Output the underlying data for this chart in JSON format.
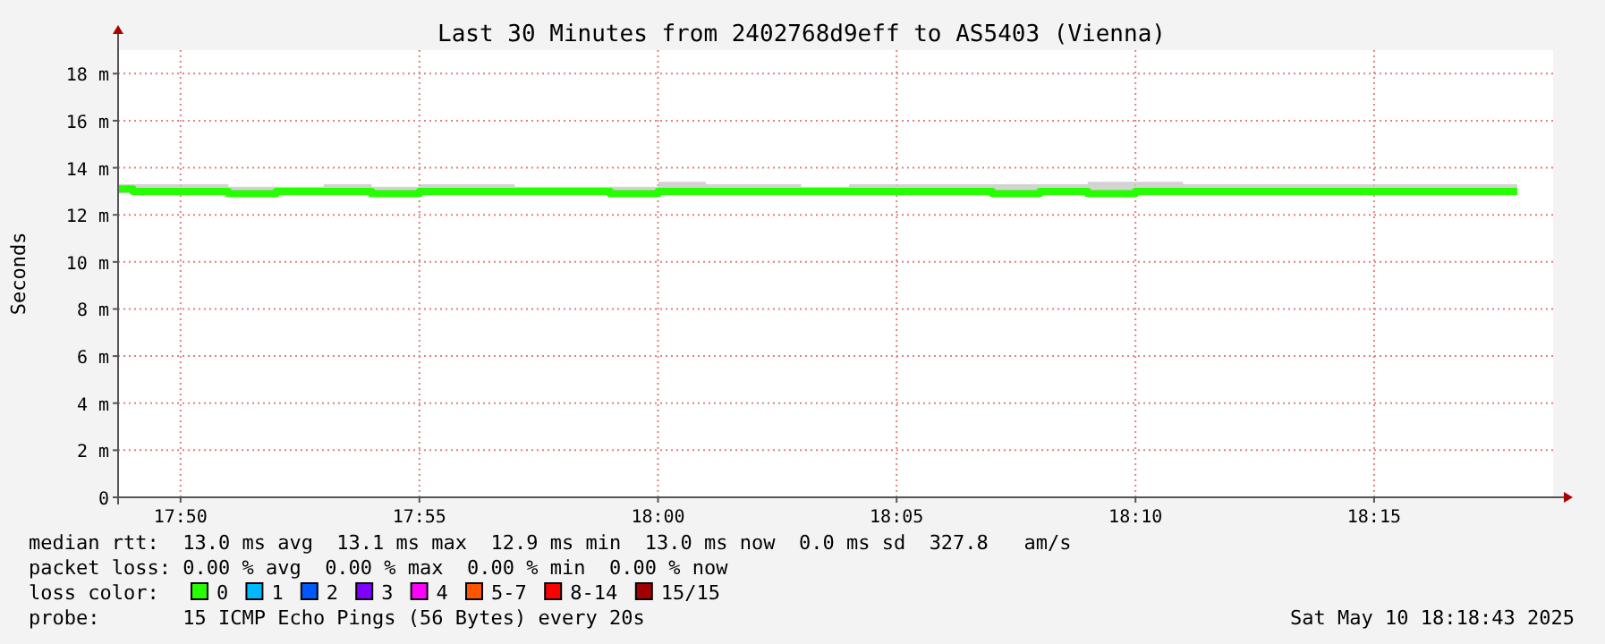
{
  "chart_data": {
    "type": "step",
    "title": "Last 30 Minutes from 2402768d9eff to AS5403 (Vienna)",
    "ylabel": "Seconds",
    "xlim": [
      17.8115,
      18.3125
    ],
    "xticks": [
      {
        "value": 17.8333,
        "label": "17:50"
      },
      {
        "value": 17.9167,
        "label": "17:55"
      },
      {
        "value": 18.0,
        "label": "18:00"
      },
      {
        "value": 18.0833,
        "label": "18:05"
      },
      {
        "value": 18.1667,
        "label": "18:10"
      },
      {
        "value": 18.25,
        "label": "18:15"
      }
    ],
    "ylim": [
      0,
      19
    ],
    "yticks": [
      0,
      {
        "value": 2,
        "label": "2 m"
      },
      {
        "value": 4,
        "label": "4 m"
      },
      {
        "value": 6,
        "label": "6 m"
      },
      {
        "value": 8,
        "label": "8 m"
      },
      {
        "value": 10,
        "label": "10 m"
      },
      {
        "value": 12,
        "label": "12 m"
      },
      {
        "value": 14,
        "label": "14 m"
      },
      {
        "value": 16,
        "label": "16 m"
      },
      {
        "value": 18,
        "label": "18 m"
      }
    ],
    "grid": true,
    "legend": "bottom",
    "legend_title": "loss color:",
    "x": [
      17.8115,
      17.8167,
      17.8333,
      17.85,
      17.8667,
      17.8833,
      17.9,
      17.9167,
      17.9333,
      17.95,
      17.9667,
      17.9833,
      18.0,
      18.0167,
      18.0333,
      18.05,
      18.0667,
      18.0833,
      18.1,
      18.1167,
      18.1333,
      18.15,
      18.1667,
      18.1833,
      18.2,
      18.2167,
      18.2333,
      18.25,
      18.2667,
      18.2833,
      18.3
    ],
    "series": [
      {
        "name": "0",
        "color": "#26ff00",
        "values": [
          13.1,
          13.0,
          13.0,
          12.9,
          13.0,
          13.0,
          12.9,
          13.0,
          13.0,
          13.0,
          13.0,
          12.9,
          13.0,
          13.0,
          13.0,
          13.0,
          13.0,
          13.0,
          13.0,
          12.9,
          13.0,
          12.9,
          13.0,
          13.0,
          13.0,
          13.0,
          13.0,
          13.0,
          13.0,
          13.0,
          13.0
        ],
        "lower": [
          12.9,
          12.9,
          12.9,
          12.8,
          12.9,
          12.9,
          12.9,
          12.9,
          12.9,
          12.9,
          12.9,
          12.9,
          12.9,
          12.9,
          12.9,
          12.9,
          12.9,
          12.9,
          12.9,
          12.8,
          12.9,
          12.8,
          12.9,
          12.9,
          12.9,
          12.9,
          12.9,
          12.9,
          12.9,
          12.9,
          12.9
        ],
        "upper": [
          13.3,
          13.3,
          13.3,
          13.2,
          13.2,
          13.3,
          13.2,
          13.3,
          13.3,
          13.2,
          13.2,
          13.2,
          13.4,
          13.3,
          13.3,
          13.2,
          13.3,
          13.3,
          13.3,
          13.3,
          13.3,
          13.4,
          13.4,
          13.3,
          13.3,
          13.3,
          13.3,
          13.3,
          13.3,
          13.3,
          13.3
        ]
      },
      {
        "name": "1",
        "color": "#00b8ff",
        "values": [
          null,
          null,
          null,
          null,
          null,
          null,
          null,
          null,
          null,
          null,
          null,
          null,
          null,
          null,
          null,
          null,
          null,
          null,
          null,
          null,
          null,
          null,
          null,
          null,
          null,
          null,
          null,
          null,
          null,
          null,
          null
        ]
      },
      {
        "name": "2",
        "color": "#0059ff",
        "values": [
          null,
          null,
          null,
          null,
          null,
          null,
          null,
          null,
          null,
          null,
          null,
          null,
          null,
          null,
          null,
          null,
          null,
          null,
          null,
          null,
          null,
          null,
          null,
          null,
          null,
          null,
          null,
          null,
          null,
          null,
          null
        ]
      },
      {
        "name": "3",
        "color": "#7e00ff",
        "values": [
          null,
          null,
          null,
          null,
          null,
          null,
          null,
          null,
          null,
          null,
          null,
          null,
          null,
          null,
          null,
          null,
          null,
          null,
          null,
          null,
          null,
          null,
          null,
          null,
          null,
          null,
          null,
          null,
          null,
          null,
          null
        ]
      },
      {
        "name": "4",
        "color": "#ff00ff",
        "values": [
          null,
          null,
          null,
          null,
          null,
          null,
          null,
          null,
          null,
          null,
          null,
          null,
          null,
          null,
          null,
          null,
          null,
          null,
          null,
          null,
          null,
          null,
          null,
          null,
          null,
          null,
          null,
          null,
          null,
          null,
          null
        ]
      },
      {
        "name": "5-7",
        "color": "#ff5500",
        "values": [
          null,
          null,
          null,
          null,
          null,
          null,
          null,
          null,
          null,
          null,
          null,
          null,
          null,
          null,
          null,
          null,
          null,
          null,
          null,
          null,
          null,
          null,
          null,
          null,
          null,
          null,
          null,
          null,
          null,
          null,
          null
        ]
      },
      {
        "name": "8-14",
        "color": "#ff0000",
        "values": [
          null,
          null,
          null,
          null,
          null,
          null,
          null,
          null,
          null,
          null,
          null,
          null,
          null,
          null,
          null,
          null,
          null,
          null,
          null,
          null,
          null,
          null,
          null,
          null,
          null,
          null,
          null,
          null,
          null,
          null,
          null
        ]
      },
      {
        "name": "15/15",
        "color": "#a10000",
        "values": [
          null,
          null,
          null,
          null,
          null,
          null,
          null,
          null,
          null,
          null,
          null,
          null,
          null,
          null,
          null,
          null,
          null,
          null,
          null,
          null,
          null,
          null,
          null,
          null,
          null,
          null,
          null,
          null,
          null,
          null,
          null
        ]
      }
    ],
    "annotations": [
      "median rtt:  13.0 ms avg  13.1 ms max  12.9 ms min  13.0 ms now  0.0 ms sd  327.8   am/s",
      "packet loss: 0.00 % avg  0.00 % max  0.00 % min  0.00 % now",
      "probe:       15 ICMP Echo Pings (56 Bytes) every 20s",
      "Sat May 10 18:18:43 2025"
    ]
  }
}
